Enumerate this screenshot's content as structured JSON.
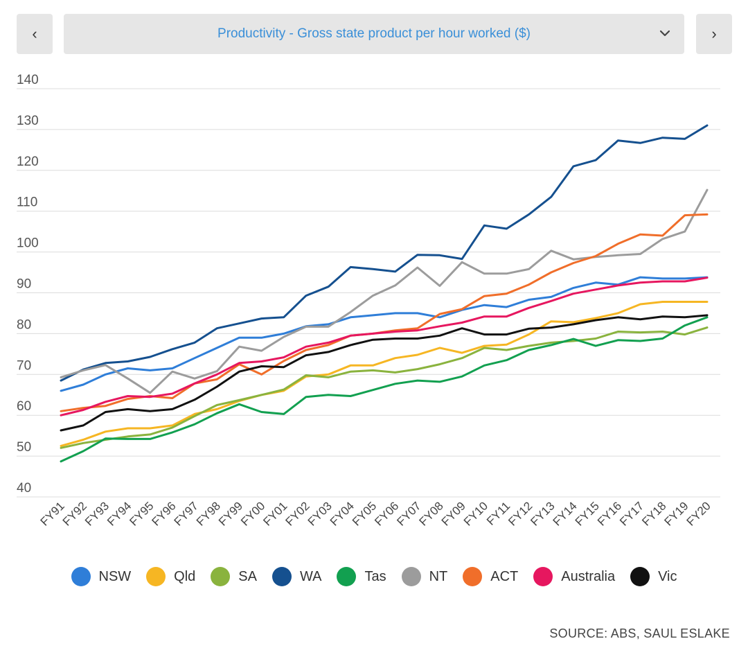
{
  "nav": {
    "prev_icon": "‹",
    "next_icon": "›",
    "caret_icon": "chevron-down-icon"
  },
  "selector": {
    "label": "Productivity - Gross state product per hour worked ($)"
  },
  "source": "SOURCE: ABS, SAUL ESLAKE",
  "chart_data": {
    "type": "line",
    "title": "Productivity - Gross state product per hour worked ($)",
    "xlabel": "",
    "ylabel": "",
    "ylim": [
      40,
      140
    ],
    "yticks": [
      40,
      50,
      60,
      70,
      80,
      90,
      100,
      110,
      120,
      130,
      140
    ],
    "grid": true,
    "legend_position": "bottom",
    "x": [
      "FY91",
      "FY92",
      "FY93",
      "FY94",
      "FY95",
      "FY96",
      "FY97",
      "FY98",
      "FY99",
      "FY00",
      "FY01",
      "FY02",
      "FY03",
      "FY04",
      "FY05",
      "FY06",
      "FY07",
      "FY08",
      "FY09",
      "FY10",
      "FY11",
      "FY12",
      "FY13",
      "FY14",
      "FY15",
      "FY16",
      "FY17",
      "FY18",
      "FY19",
      "FY20"
    ],
    "series": [
      {
        "name": "NSW",
        "color": "#2f7ed8",
        "values": [
          66,
          67.5,
          70,
          71.5,
          71,
          71.5,
          74,
          76.5,
          79,
          79,
          80,
          81.8,
          82.3,
          84,
          84.5,
          85,
          85,
          84,
          85.8,
          87,
          86.5,
          88.3,
          89,
          91.2,
          92.5,
          92,
          93.8,
          93.5,
          93.5,
          93.8
        ]
      },
      {
        "name": "Qld",
        "color": "#f6b623",
        "values": [
          52.5,
          54,
          56,
          56.8,
          56.8,
          57.5,
          60.3,
          61.5,
          63.5,
          65,
          66,
          69.5,
          70,
          72.2,
          72.2,
          74,
          74.8,
          76.5,
          75.3,
          77,
          77.3,
          79.8,
          83,
          82.8,
          83.8,
          85,
          87.2,
          87.8,
          87.8,
          87.8
        ]
      },
      {
        "name": "SA",
        "color": "#8ab33e",
        "values": [
          52,
          53.2,
          54,
          54.8,
          55.3,
          57,
          59.8,
          62.5,
          63.7,
          65,
          66.3,
          69.8,
          69.3,
          70.7,
          71,
          70.5,
          71.3,
          72.5,
          74,
          76.5,
          76,
          77,
          77.8,
          78.2,
          78.8,
          80.5,
          80.3,
          80.5,
          79.8,
          81.5
        ]
      },
      {
        "name": "WA",
        "color": "#15508f",
        "values": [
          68.5,
          71.2,
          72.8,
          73.2,
          74.3,
          76.2,
          77.8,
          81.3,
          82.5,
          83.7,
          84,
          89.3,
          91.5,
          96.3,
          95.8,
          95.2,
          99.3,
          99.2,
          98.3,
          106.5,
          105.7,
          109.2,
          113.5,
          121,
          122.5,
          127.3,
          126.7,
          128,
          127.7,
          131
        ]
      },
      {
        "name": "Tas",
        "color": "#12a050",
        "values": [
          48.7,
          51.2,
          54.3,
          54.2,
          54.2,
          55.8,
          57.8,
          60.5,
          62.7,
          60.8,
          60.3,
          64.5,
          65,
          64.7,
          66.2,
          67.7,
          68.5,
          68.2,
          69.5,
          72.2,
          73.5,
          76,
          77.2,
          78.7,
          77,
          78.4,
          78.2,
          78.8,
          82,
          84
        ]
      },
      {
        "name": "NT",
        "color": "#9c9c9c",
        "values": [
          69.3,
          71,
          72.3,
          69,
          65.5,
          70.7,
          69,
          70.8,
          76.8,
          75.8,
          79.2,
          81.7,
          81.7,
          85.3,
          89.3,
          91.8,
          96.2,
          91.7,
          97.5,
          94.7,
          94.7,
          95.8,
          100.3,
          98.2,
          98.8,
          99.2,
          99.5,
          103.2,
          105,
          115.2
        ]
      },
      {
        "name": "ACT",
        "color": "#f06e2a",
        "values": [
          61,
          61.8,
          62.3,
          64,
          64.7,
          64.2,
          67.8,
          68.8,
          72.5,
          70,
          73.3,
          76,
          77.2,
          79.5,
          80,
          80.8,
          81.3,
          84.8,
          86,
          89.2,
          89.8,
          92,
          95,
          97.3,
          99,
          102,
          104.3,
          104,
          109,
          109.2
        ]
      },
      {
        "name": "Australia",
        "color": "#e6175f",
        "values": [
          60,
          61.3,
          63.3,
          64.7,
          64.5,
          65.3,
          67.8,
          70,
          72.8,
          73.2,
          74.2,
          76.8,
          77.8,
          79.5,
          80,
          80.5,
          80.8,
          81.8,
          82.7,
          84.2,
          84.2,
          86.3,
          88,
          89.8,
          90.8,
          91.8,
          92.5,
          92.8,
          92.8,
          93.7
        ]
      },
      {
        "name": "Vic",
        "color": "#111111",
        "values": [
          56.3,
          57.5,
          60.8,
          61.5,
          61,
          61.5,
          63.8,
          67,
          70.7,
          72,
          71.8,
          74.7,
          75.5,
          77.2,
          78.5,
          78.8,
          78.8,
          79.5,
          81.3,
          79.8,
          79.8,
          81.2,
          81.5,
          82.3,
          83.3,
          84,
          83.5,
          84.2,
          84,
          84.5
        ]
      }
    ]
  }
}
